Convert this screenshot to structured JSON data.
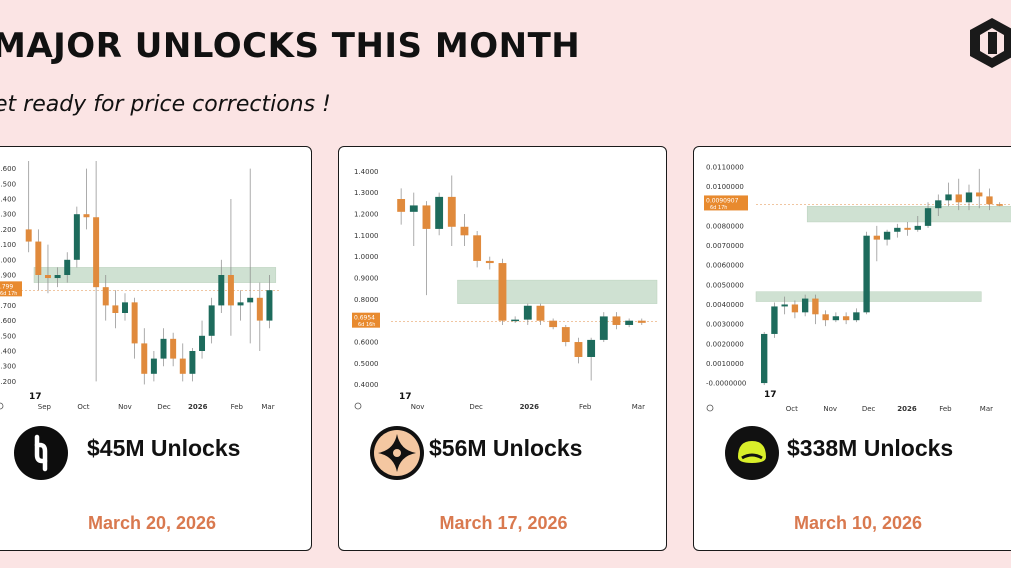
{
  "header": {
    "title": "MAJOR UNLOCKS THIS MONTH",
    "subtitle": "et ready for price corrections !"
  },
  "cards": [
    {
      "unlock_label": "$45M Unlocks",
      "date": "March 20, 2026",
      "price_tag": "1.799",
      "price_tag_sub": "6d 17h"
    },
    {
      "unlock_label": "$56M Unlocks",
      "date": "March 17, 2026",
      "price_tag": "0.6954",
      "price_tag_sub": "6d 16h"
    },
    {
      "unlock_label": "$338M Unlocks",
      "date": "March 10, 2026",
      "price_tag": "0.0090907",
      "price_tag_sub": "6d 17h"
    }
  ],
  "chart_data": [
    {
      "type": "candlestick",
      "y_ticks": [
        "2.600",
        "2.500",
        "2.400",
        "2.300",
        "2.200",
        "2.100",
        "2.000",
        "1.900",
        "1.800",
        "1.700",
        "1.600",
        "1.500",
        "1.400",
        "1.300",
        "1.200"
      ],
      "ylim": [
        1.15,
        2.65
      ],
      "x_ticks": [
        "Sep",
        "Oct",
        "Nov",
        "Dec",
        "2026",
        "Feb",
        "Mar"
      ],
      "x_ticks_bold": [
        "2026"
      ],
      "zone": [
        1.85,
        1.95
      ],
      "current_price": 1.799,
      "candles": [
        [
          2.2,
          2.12,
          2.65,
          2.05
        ],
        [
          2.12,
          1.9,
          2.2,
          1.8
        ],
        [
          1.9,
          1.88,
          2.1,
          1.78
        ],
        [
          1.88,
          1.9,
          1.95,
          1.82
        ],
        [
          1.9,
          2.0,
          2.05,
          1.85
        ],
        [
          2.0,
          2.3,
          2.35,
          1.95
        ],
        [
          2.3,
          2.28,
          2.6,
          2.2
        ],
        [
          2.28,
          1.82,
          2.65,
          1.2
        ],
        [
          1.82,
          1.7,
          1.9,
          1.6
        ],
        [
          1.7,
          1.65,
          1.8,
          1.55
        ],
        [
          1.65,
          1.72,
          1.78,
          1.6
        ],
        [
          1.72,
          1.45,
          1.75,
          1.35
        ],
        [
          1.45,
          1.25,
          1.55,
          1.18
        ],
        [
          1.25,
          1.35,
          1.4,
          1.2
        ],
        [
          1.35,
          1.48,
          1.55,
          1.3
        ],
        [
          1.48,
          1.35,
          1.52,
          1.3
        ],
        [
          1.35,
          1.25,
          1.45,
          1.2
        ],
        [
          1.25,
          1.4,
          1.42,
          1.2
        ],
        [
          1.4,
          1.5,
          1.6,
          1.35
        ],
        [
          1.5,
          1.7,
          1.75,
          1.45
        ],
        [
          1.7,
          1.9,
          2.0,
          1.65
        ],
        [
          1.9,
          1.7,
          2.4,
          1.5
        ],
        [
          1.7,
          1.72,
          1.8,
          1.6
        ],
        [
          1.72,
          1.75,
          2.6,
          1.45
        ],
        [
          1.75,
          1.6,
          1.85,
          1.4
        ],
        [
          1.6,
          1.8,
          1.9,
          1.55
        ]
      ]
    },
    {
      "type": "candlestick",
      "y_ticks": [
        "1.4000",
        "1.3000",
        "1.2000",
        "1.1000",
        "1.0000",
        "0.9000",
        "0.8000",
        "0.7000",
        "0.6000",
        "0.5000",
        "0.4000"
      ],
      "ylim": [
        0.38,
        1.42
      ],
      "x_ticks": [
        "Nov",
        "Dec",
        "2026",
        "Feb",
        "Mar"
      ],
      "x_ticks_bold": [
        "2026"
      ],
      "zone": [
        0.78,
        0.89
      ],
      "current_price": 0.6954,
      "candles": [
        [
          1.27,
          1.21,
          1.32,
          1.15
        ],
        [
          1.21,
          1.24,
          1.3,
          1.05
        ],
        [
          1.24,
          1.13,
          1.26,
          0.82
        ],
        [
          1.13,
          1.28,
          1.3,
          1.1
        ],
        [
          1.28,
          1.14,
          1.38,
          1.05
        ],
        [
          1.14,
          1.1,
          1.2,
          1.05
        ],
        [
          1.1,
          0.98,
          1.12,
          0.95
        ],
        [
          0.98,
          0.97,
          1.0,
          0.94
        ],
        [
          0.97,
          0.7,
          0.99,
          0.68
        ],
        [
          0.7,
          0.705,
          0.72,
          0.69
        ],
        [
          0.705,
          0.77,
          0.78,
          0.68
        ],
        [
          0.77,
          0.7,
          0.78,
          0.68
        ],
        [
          0.7,
          0.67,
          0.71,
          0.66
        ],
        [
          0.67,
          0.6,
          0.68,
          0.58
        ],
        [
          0.6,
          0.53,
          0.62,
          0.5
        ],
        [
          0.53,
          0.61,
          0.62,
          0.42
        ],
        [
          0.61,
          0.72,
          0.74,
          0.6
        ],
        [
          0.72,
          0.68,
          0.74,
          0.66
        ],
        [
          0.68,
          0.7,
          0.71,
          0.67
        ],
        [
          0.7,
          0.69,
          0.71,
          0.68
        ]
      ]
    },
    {
      "type": "candlestick",
      "y_ticks": [
        "0.0110000",
        "0.0100000",
        "0.0090000",
        "0.0080000",
        "0.0070000",
        "0.0060000",
        "0.0050000",
        "0.0040000",
        "0.0030000",
        "0.0020000",
        "0.0010000",
        "-0.0000000"
      ],
      "ylim": [
        -0.0002,
        0.0112
      ],
      "x_ticks": [
        "Oct",
        "Nov",
        "Dec",
        "2026",
        "Feb",
        "Mar"
      ],
      "x_ticks_bold": [
        "2026"
      ],
      "zone": [
        0.00415,
        0.00465
      ],
      "zone2": [
        0.0082,
        0.009
      ],
      "current_price": 0.0090907,
      "candles": [
        [
          0.0,
          0.0025,
          0.0026,
          -0.0001
        ],
        [
          0.0025,
          0.0039,
          0.0041,
          0.0023
        ],
        [
          0.0039,
          0.004,
          0.0044,
          0.0035
        ],
        [
          0.004,
          0.0036,
          0.0042,
          0.0033
        ],
        [
          0.0036,
          0.0043,
          0.0045,
          0.0034
        ],
        [
          0.0043,
          0.0035,
          0.0045,
          0.003
        ],
        [
          0.0035,
          0.0032,
          0.0037,
          0.0029
        ],
        [
          0.0032,
          0.0034,
          0.0036,
          0.0031
        ],
        [
          0.0034,
          0.0032,
          0.0036,
          0.003
        ],
        [
          0.0032,
          0.0036,
          0.0038,
          0.0031
        ],
        [
          0.0036,
          0.0075,
          0.0077,
          0.0035
        ],
        [
          0.0075,
          0.0073,
          0.008,
          0.0062
        ],
        [
          0.0073,
          0.0077,
          0.0078,
          0.007
        ],
        [
          0.0077,
          0.0079,
          0.0081,
          0.0074
        ],
        [
          0.0079,
          0.0078,
          0.0082,
          0.0075
        ],
        [
          0.0078,
          0.008,
          0.0085,
          0.0077
        ],
        [
          0.008,
          0.0089,
          0.0092,
          0.0079
        ],
        [
          0.0089,
          0.0093,
          0.0096,
          0.0085
        ],
        [
          0.0093,
          0.0096,
          0.0102,
          0.009
        ],
        [
          0.0096,
          0.0092,
          0.0104,
          0.0088
        ],
        [
          0.0092,
          0.0097,
          0.0101,
          0.0088
        ],
        [
          0.0097,
          0.0095,
          0.0109,
          0.0089
        ],
        [
          0.0095,
          0.0091,
          0.0099,
          0.0088
        ],
        [
          0.0091,
          0.00905,
          0.0092,
          0.009
        ]
      ]
    }
  ],
  "colors": {
    "background": "#fbe4e4",
    "up": "#1d6b5c",
    "down": "#e08a3c",
    "zone": "#cfe1d2",
    "date": "#d9794f",
    "price_tag": "#e88a2e"
  }
}
